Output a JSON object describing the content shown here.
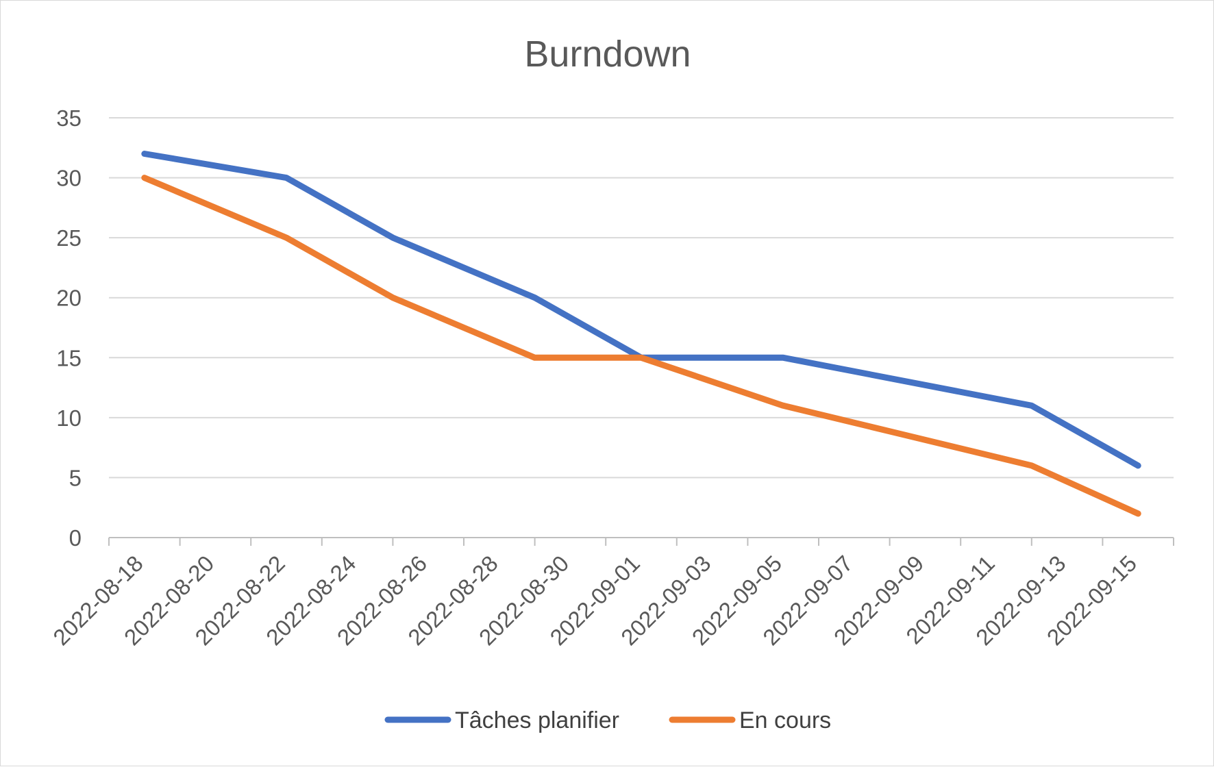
{
  "chart_data": {
    "type": "line",
    "title": "Burndown",
    "xlabel": "",
    "ylabel": "",
    "ylim": [
      0,
      35
    ],
    "yticks": [
      0,
      5,
      10,
      15,
      20,
      25,
      30,
      35
    ],
    "xlim": [
      "2022-08-17",
      "2022-09-16"
    ],
    "xticks": [
      "2022-08-18",
      "2022-08-20",
      "2022-08-22",
      "2022-08-24",
      "2022-08-26",
      "2022-08-28",
      "2022-08-30",
      "2022-09-01",
      "2022-09-03",
      "2022-09-05",
      "2022-09-07",
      "2022-09-09",
      "2022-09-11",
      "2022-09-13",
      "2022-09-15"
    ],
    "grid": true,
    "legend_position": "bottom",
    "series": [
      {
        "name": "Tâches planifier",
        "color": "#4472C4",
        "points": [
          {
            "x": "2022-08-18",
            "y": 32
          },
          {
            "x": "2022-08-22",
            "y": 30
          },
          {
            "x": "2022-08-25",
            "y": 25
          },
          {
            "x": "2022-08-29",
            "y": 20
          },
          {
            "x": "2022-09-01",
            "y": 15
          },
          {
            "x": "2022-09-05",
            "y": 15
          },
          {
            "x": "2022-09-12",
            "y": 11
          },
          {
            "x": "2022-09-15",
            "y": 6
          }
        ]
      },
      {
        "name": "En cours",
        "color": "#ED7D31",
        "points": [
          {
            "x": "2022-08-18",
            "y": 30
          },
          {
            "x": "2022-08-22",
            "y": 25
          },
          {
            "x": "2022-08-25",
            "y": 20
          },
          {
            "x": "2022-08-29",
            "y": 15
          },
          {
            "x": "2022-09-01",
            "y": 15
          },
          {
            "x": "2022-09-05",
            "y": 11
          },
          {
            "x": "2022-09-12",
            "y": 6
          },
          {
            "x": "2022-09-15",
            "y": 2
          }
        ]
      }
    ]
  }
}
